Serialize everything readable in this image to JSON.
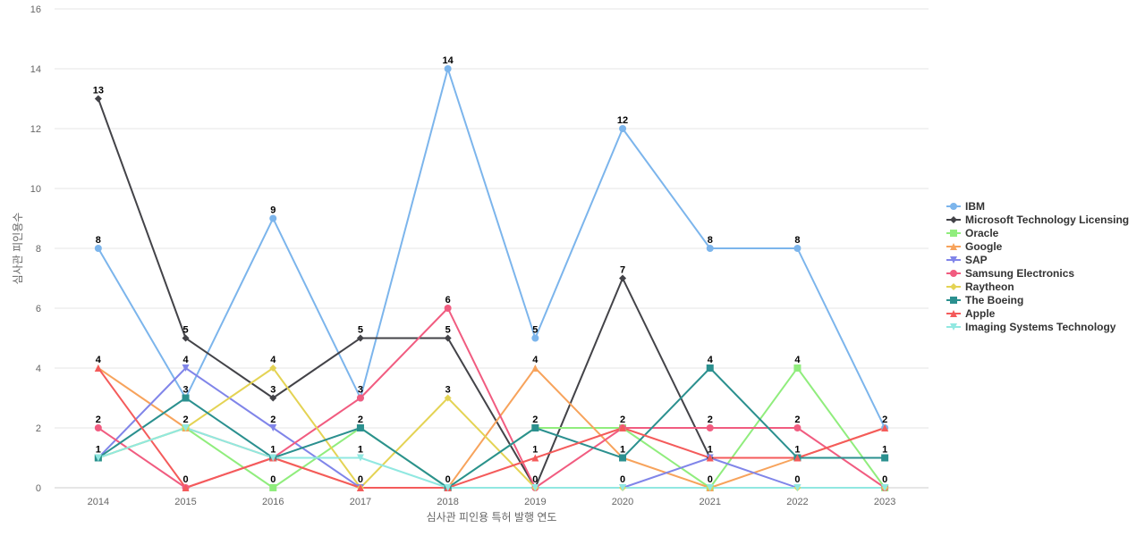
{
  "chart_data": {
    "type": "line",
    "xlabel": "심사관 피인용 특허 발행 연도",
    "ylabel": "심사관 피인용수",
    "ylim": [
      0,
      16
    ],
    "yticks": [
      0,
      2,
      4,
      6,
      8,
      10,
      12,
      14,
      16
    ],
    "grid": true,
    "legend_position": "right",
    "categories": [
      "2014",
      "2015",
      "2016",
      "2017",
      "2018",
      "2019",
      "2020",
      "2021",
      "2022",
      "2023"
    ],
    "series": [
      {
        "name": "IBM",
        "color": "#7cb5ec",
        "marker": "circle",
        "values": [
          8,
          3,
          9,
          3,
          14,
          5,
          12,
          8,
          8,
          2
        ]
      },
      {
        "name": "Microsoft Technology Licensing",
        "color": "#434348",
        "marker": "diamond",
        "values": [
          13,
          5,
          3,
          5,
          5,
          0,
          7,
          1,
          1,
          1
        ]
      },
      {
        "name": "Oracle",
        "color": "#90ed7d",
        "marker": "square",
        "values": [
          1,
          2,
          0,
          2,
          0,
          2,
          2,
          0,
          4,
          0
        ]
      },
      {
        "name": "Google",
        "color": "#f7a35c",
        "marker": "triangle",
        "values": [
          4,
          2,
          1,
          0,
          0,
          4,
          1,
          0,
          1,
          2
        ]
      },
      {
        "name": "SAP",
        "color": "#8085e9",
        "marker": "triangle-down",
        "values": [
          1,
          4,
          2,
          0,
          0,
          0,
          0,
          1,
          0,
          0
        ]
      },
      {
        "name": "Samsung Electronics",
        "color": "#f15c80",
        "marker": "circle",
        "values": [
          2,
          0,
          1,
          3,
          6,
          0,
          2,
          2,
          2,
          0
        ]
      },
      {
        "name": "Raytheon",
        "color": "#e4d354",
        "marker": "diamond",
        "values": [
          1,
          2,
          4,
          0,
          3,
          0,
          0,
          0,
          0,
          0
        ]
      },
      {
        "name": "The Boeing",
        "color": "#2b908f",
        "marker": "square",
        "values": [
          1,
          3,
          1,
          2,
          0,
          2,
          1,
          4,
          1,
          1
        ]
      },
      {
        "name": "Apple",
        "color": "#f45b5b",
        "marker": "triangle",
        "values": [
          4,
          0,
          1,
          0,
          0,
          1,
          2,
          1,
          1,
          2
        ]
      },
      {
        "name": "Imaging Systems Technology",
        "color": "#91e8e1",
        "marker": "triangle-down",
        "values": [
          1,
          2,
          1,
          1,
          0,
          0,
          0,
          0,
          0,
          0
        ]
      }
    ],
    "data_labels": [
      {
        "category": "2014",
        "text": "13",
        "value": 13
      },
      {
        "category": "2014",
        "text": "8",
        "value": 8
      },
      {
        "category": "2014",
        "text": "4",
        "value": 4
      },
      {
        "category": "2014",
        "text": "2",
        "value": 2
      },
      {
        "category": "2014",
        "text": "1",
        "value": 1
      },
      {
        "category": "2015",
        "text": "5",
        "value": 5
      },
      {
        "category": "2015",
        "text": "4",
        "value": 4
      },
      {
        "category": "2015",
        "text": "3",
        "value": 3
      },
      {
        "category": "2015",
        "text": "2",
        "value": 2
      },
      {
        "category": "2015",
        "text": "0",
        "value": 0
      },
      {
        "category": "2016",
        "text": "9",
        "value": 9
      },
      {
        "category": "2016",
        "text": "4",
        "value": 4
      },
      {
        "category": "2016",
        "text": "3",
        "value": 3
      },
      {
        "category": "2016",
        "text": "2",
        "value": 2
      },
      {
        "category": "2016",
        "text": "1",
        "value": 1
      },
      {
        "category": "2016",
        "text": "0",
        "value": 0
      },
      {
        "category": "2017",
        "text": "5",
        "value": 5
      },
      {
        "category": "2017",
        "text": "3",
        "value": 3
      },
      {
        "category": "2017",
        "text": "2",
        "value": 2
      },
      {
        "category": "2017",
        "text": "1",
        "value": 1
      },
      {
        "category": "2017",
        "text": "0",
        "value": 0
      },
      {
        "category": "2018",
        "text": "14",
        "value": 14
      },
      {
        "category": "2018",
        "text": "6",
        "value": 6
      },
      {
        "category": "2018",
        "text": "5",
        "value": 5
      },
      {
        "category": "2018",
        "text": "3",
        "value": 3
      },
      {
        "category": "2018",
        "text": "0",
        "value": 0
      },
      {
        "category": "2019",
        "text": "5",
        "value": 5
      },
      {
        "category": "2019",
        "text": "4",
        "value": 4
      },
      {
        "category": "2019",
        "text": "2",
        "value": 2
      },
      {
        "category": "2019",
        "text": "1",
        "value": 1
      },
      {
        "category": "2019",
        "text": "0",
        "value": 0
      },
      {
        "category": "2020",
        "text": "12",
        "value": 12
      },
      {
        "category": "2020",
        "text": "7",
        "value": 7
      },
      {
        "category": "2020",
        "text": "2",
        "value": 2
      },
      {
        "category": "2020",
        "text": "1",
        "value": 1
      },
      {
        "category": "2020",
        "text": "0",
        "value": 0
      },
      {
        "category": "2021",
        "text": "8",
        "value": 8
      },
      {
        "category": "2021",
        "text": "4",
        "value": 4
      },
      {
        "category": "2021",
        "text": "2",
        "value": 2
      },
      {
        "category": "2021",
        "text": "1",
        "value": 1
      },
      {
        "category": "2021",
        "text": "0",
        "value": 0
      },
      {
        "category": "2022",
        "text": "8",
        "value": 8
      },
      {
        "category": "2022",
        "text": "4",
        "value": 4
      },
      {
        "category": "2022",
        "text": "2",
        "value": 2
      },
      {
        "category": "2022",
        "text": "1",
        "value": 1
      },
      {
        "category": "2022",
        "text": "0",
        "value": 0
      },
      {
        "category": "2023",
        "text": "2",
        "value": 2
      },
      {
        "category": "2023",
        "text": "1",
        "value": 1
      },
      {
        "category": "2023",
        "text": "0",
        "value": 0
      }
    ]
  }
}
